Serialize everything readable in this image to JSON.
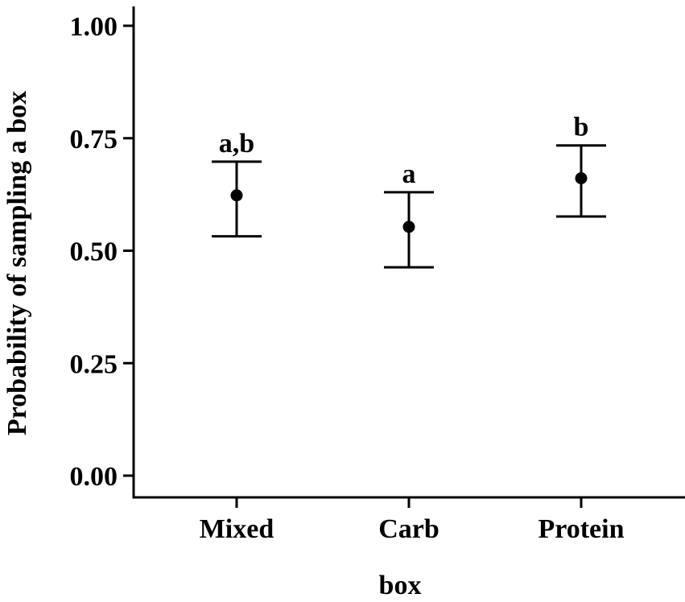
{
  "chart_data": {
    "type": "scatter",
    "title": "",
    "xlabel": "box",
    "ylabel": "Probability of sampling a box",
    "ylim": [
      0,
      1
    ],
    "yticks": [
      "0.00",
      "0.25",
      "0.50",
      "0.75",
      "1.00"
    ],
    "ytick_values": [
      0,
      0.25,
      0.5,
      0.75,
      1.0
    ],
    "categories": [
      "Mixed",
      "Carb",
      "Protein"
    ],
    "series": [
      {
        "values": [
          0.623,
          0.553,
          0.661
        ],
        "lower": [
          0.532,
          0.463,
          0.576
        ],
        "upper": [
          0.698,
          0.63,
          0.734
        ],
        "labels": [
          "a,b",
          "a",
          "b"
        ]
      }
    ],
    "grid": false,
    "legend": "none"
  }
}
